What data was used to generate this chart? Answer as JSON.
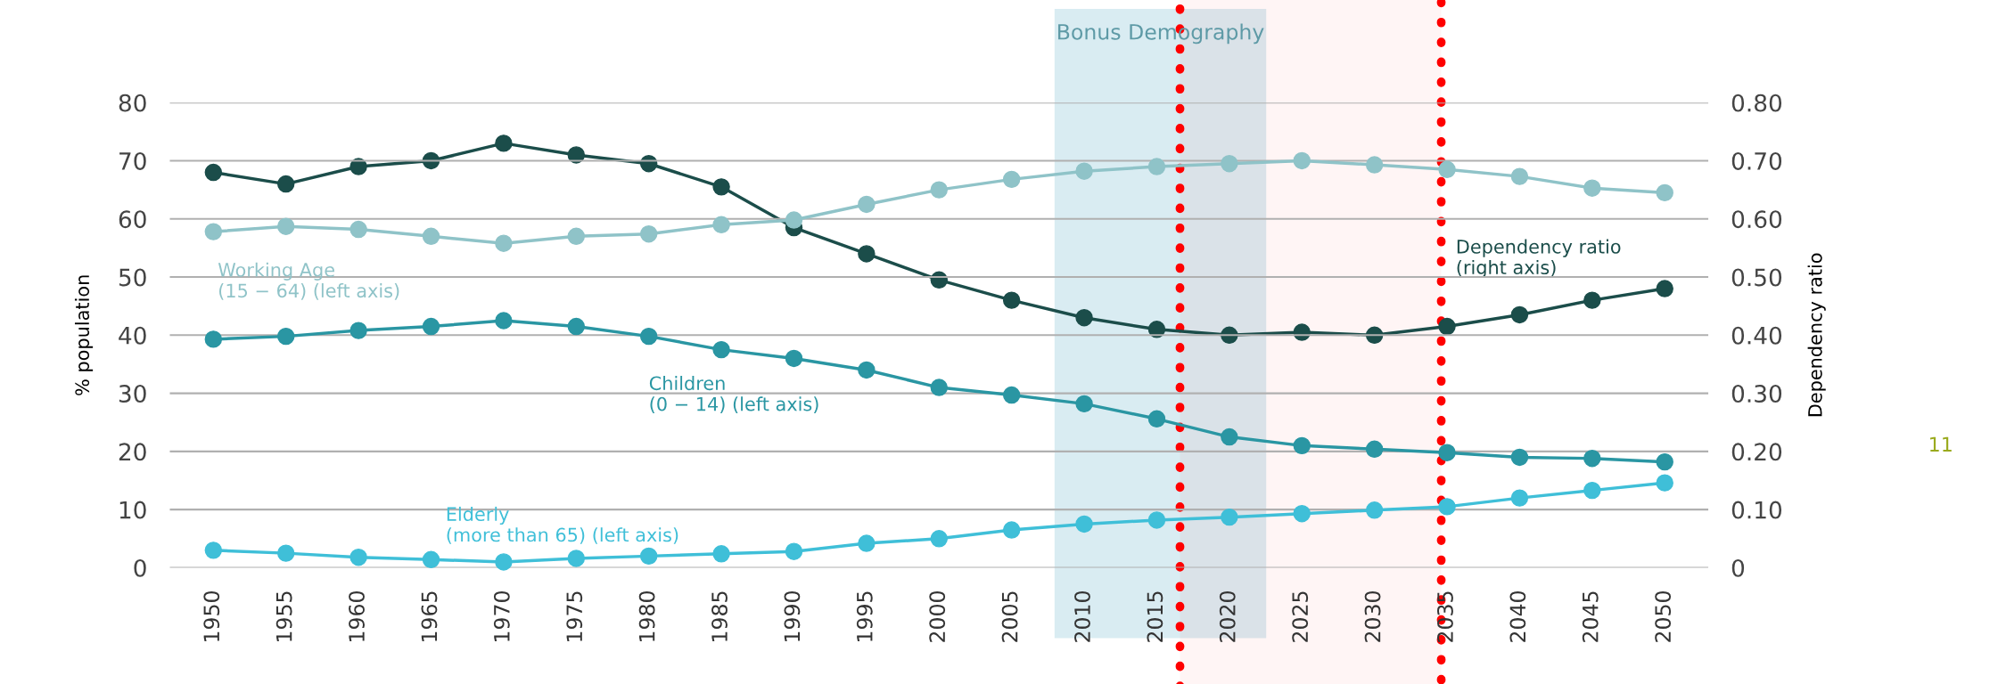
{
  "chart_data": {
    "type": "line",
    "ylabel": "% population",
    "y2label": "Dependency ratio",
    "x": [
      1950,
      1955,
      1960,
      1965,
      1970,
      1975,
      1980,
      1985,
      1990,
      1995,
      2000,
      2005,
      2010,
      2015,
      2020,
      2025,
      2030,
      2035,
      2040,
      2045,
      2050
    ],
    "xlim": [
      1947,
      2053
    ],
    "xticks": [
      1950,
      1955,
      1960,
      1965,
      1970,
      1975,
      1980,
      1985,
      1990,
      1995,
      2000,
      2005,
      2010,
      2015,
      2020,
      2025,
      2030,
      2035,
      2040,
      2045,
      2050
    ],
    "ylim": [
      0,
      80
    ],
    "yticks": [
      0,
      10,
      20,
      30,
      40,
      50,
      60,
      70,
      80
    ],
    "y2lim": [
      0,
      0.8
    ],
    "y2ticks": [
      {
        "value": 0,
        "label": "0"
      },
      {
        "value": 0.1,
        "label": "0.10"
      },
      {
        "value": 0.2,
        "label": "0.20"
      },
      {
        "value": 0.3,
        "label": "0.30"
      },
      {
        "value": 0.4,
        "label": "0.40"
      },
      {
        "value": 0.5,
        "label": "0.50"
      },
      {
        "value": 0.6,
        "label": "0.60"
      },
      {
        "value": 0.7,
        "label": "0.70"
      },
      {
        "value": 0.8,
        "label": "0.80"
      }
    ],
    "grid": "y",
    "legend": false,
    "marker": "circle",
    "line_style": "solid",
    "series": [
      {
        "name": "Dependency ratio\n(right axis)",
        "color": "#1b4d4a",
        "axis": "y2",
        "values": [
          0.68,
          0.66,
          0.69,
          0.7,
          0.73,
          0.71,
          0.695,
          0.655,
          0.585,
          0.54,
          0.495,
          0.46,
          0.43,
          0.41,
          0.4,
          0.405,
          0.4,
          0.415,
          0.435,
          0.46,
          0.48
        ]
      },
      {
        "name": "Working Age\n(15 − 64) (left axis)",
        "color": "#8fc3c8",
        "values": [
          57.8,
          58.7,
          58.2,
          57.0,
          55.8,
          57.0,
          57.4,
          59.0,
          59.8,
          62.5,
          65,
          66.8,
          68.2,
          69,
          69.5,
          70,
          69.3,
          68.5,
          67.3,
          65.3,
          64.5
        ]
      },
      {
        "name": "Children\n(0 − 14) (left axis)",
        "color": "#2a96a3",
        "values": [
          39.3,
          39.8,
          40.8,
          41.5,
          42.5,
          41.5,
          39.8,
          37.5,
          36,
          34,
          31,
          29.7,
          28.2,
          25.6,
          22.5,
          21,
          20.4,
          19.8,
          19,
          18.8,
          18.2
        ]
      },
      {
        "name": "Elderly\n(more than 65) (left axis)",
        "color": "#3fbfd8",
        "values": [
          3,
          2.5,
          1.8,
          1.4,
          1.0,
          1.6,
          2,
          2.4,
          2.8,
          4.2,
          5,
          6.5,
          7.5,
          8.2,
          8.7,
          9.3,
          9.9,
          10.5,
          12,
          13.3,
          14.6
        ]
      }
    ],
    "bands": [
      {
        "axis": "x",
        "from": 2008,
        "to": 2022.5,
        "label": "Bonus Demography",
        "color": "#d9ecf2"
      },
      {
        "axis": "x",
        "from": 2016.6,
        "to": 2034.6,
        "color": "#ff0000"
      }
    ],
    "annotations": [
      "11"
    ]
  }
}
